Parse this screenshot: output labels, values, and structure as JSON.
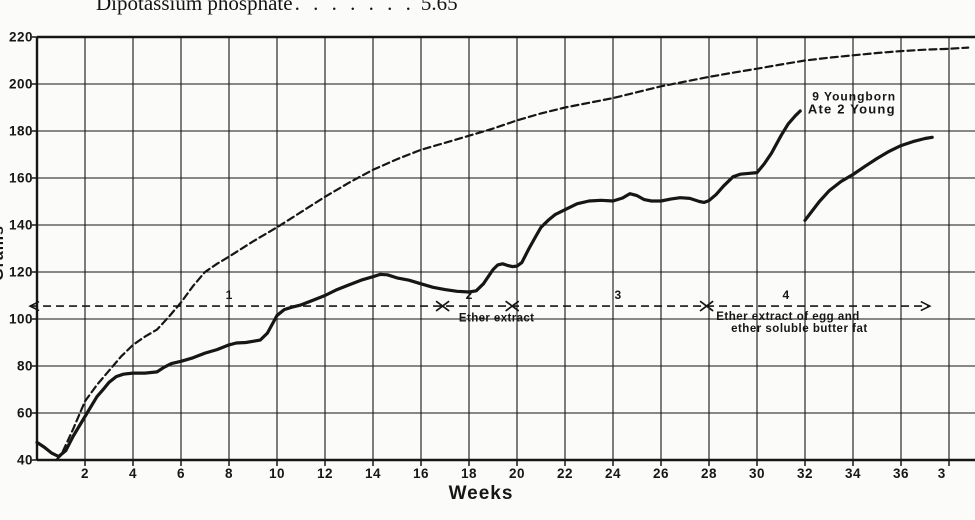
{
  "colors": {
    "ink": "#161616",
    "background": "#fbfbfa"
  },
  "caption": {
    "text": "Dipotassium phosphate",
    "leaders": ". . . . . . .",
    "value": "5.65"
  },
  "chart_data": {
    "type": "line",
    "title": "",
    "xlabel": "Weeks",
    "ylabel": "Grams",
    "xlim": [
      0,
      39
    ],
    "ylim": [
      40,
      220
    ],
    "grid": true,
    "x_ticks": [
      {
        "w": 2,
        "label": "2"
      },
      {
        "w": 4,
        "label": "4"
      },
      {
        "w": 6,
        "label": "6"
      },
      {
        "w": 8,
        "label": "8"
      },
      {
        "w": 10,
        "label": "10"
      },
      {
        "w": 12,
        "label": "12"
      },
      {
        "w": 14,
        "label": "14"
      },
      {
        "w": 16,
        "label": "16"
      },
      {
        "w": 18,
        "label": "18"
      },
      {
        "w": 20,
        "label": "20"
      },
      {
        "w": 22,
        "label": "22"
      },
      {
        "w": 24,
        "label": "24"
      },
      {
        "w": 26,
        "label": "26"
      },
      {
        "w": 28,
        "label": "28"
      },
      {
        "w": 30,
        "label": "30"
      },
      {
        "w": 32,
        "label": "32"
      },
      {
        "w": 34,
        "label": "34"
      },
      {
        "w": 36,
        "label": "36"
      },
      {
        "w": 37.7,
        "label": "3"
      }
    ],
    "y_ticks": [
      40,
      60,
      80,
      100,
      120,
      140,
      160,
      180,
      200,
      220
    ],
    "grid_weeks": [
      0,
      2,
      4,
      6,
      8,
      10,
      12,
      14,
      16,
      18,
      20,
      22,
      24,
      26,
      28,
      30,
      32,
      34,
      36,
      38
    ],
    "series": [
      {
        "name": "normal-growth-reference",
        "style": "dashed",
        "points": [
          [
            0.8,
            40
          ],
          [
            1,
            42
          ],
          [
            1.5,
            53
          ],
          [
            2,
            65
          ],
          [
            2.5,
            72
          ],
          [
            3,
            78
          ],
          [
            3.5,
            84
          ],
          [
            4,
            89
          ],
          [
            4.5,
            92.5
          ],
          [
            5,
            95.5
          ],
          [
            5.5,
            101
          ],
          [
            6,
            107
          ],
          [
            6.5,
            114
          ],
          [
            7,
            120
          ],
          [
            7.5,
            123.5
          ],
          [
            8,
            126.5
          ],
          [
            9,
            133
          ],
          [
            10,
            139
          ],
          [
            11,
            145.5
          ],
          [
            12,
            152
          ],
          [
            13,
            158
          ],
          [
            14,
            163.5
          ],
          [
            15,
            168
          ],
          [
            16,
            172
          ],
          [
            17,
            175
          ],
          [
            18,
            178
          ],
          [
            19,
            181
          ],
          [
            20,
            184.5
          ],
          [
            21,
            187.5
          ],
          [
            22,
            190
          ],
          [
            23,
            192
          ],
          [
            24,
            194
          ],
          [
            25,
            196.5
          ],
          [
            26,
            199
          ],
          [
            27,
            201
          ],
          [
            28,
            203
          ],
          [
            29,
            204.8
          ],
          [
            30,
            206.5
          ],
          [
            31,
            208.3
          ],
          [
            32,
            210
          ],
          [
            33,
            211.2
          ],
          [
            34,
            212.2
          ],
          [
            35,
            213.2
          ],
          [
            36,
            214
          ],
          [
            37,
            214.6
          ],
          [
            38,
            215
          ],
          [
            38.8,
            215.5
          ]
        ]
      },
      {
        "name": "experimental-animal",
        "style": "solid",
        "points": [
          [
            0,
            47.5
          ],
          [
            0.3,
            45.5
          ],
          [
            0.6,
            43
          ],
          [
            0.9,
            41.5
          ],
          [
            1.2,
            44
          ],
          [
            1.5,
            50
          ],
          [
            2,
            58.5
          ],
          [
            2.5,
            67
          ],
          [
            2.8,
            70.5
          ],
          [
            3,
            73
          ],
          [
            3.3,
            75.5
          ],
          [
            3.6,
            76.5
          ],
          [
            4,
            77
          ],
          [
            4.5,
            77
          ],
          [
            5,
            77.5
          ],
          [
            5.3,
            79.5
          ],
          [
            5.6,
            81
          ],
          [
            6,
            82
          ],
          [
            6.5,
            83.5
          ],
          [
            7,
            85.5
          ],
          [
            7.5,
            87
          ],
          [
            8,
            89
          ],
          [
            8.3,
            89.8
          ],
          [
            8.7,
            90
          ],
          [
            9,
            90.5
          ],
          [
            9.3,
            91
          ],
          [
            9.6,
            94
          ],
          [
            10,
            101.5
          ],
          [
            10.3,
            104
          ],
          [
            10.6,
            105
          ],
          [
            11,
            106
          ],
          [
            11.5,
            108
          ],
          [
            12,
            110
          ],
          [
            12.5,
            112.5
          ],
          [
            13,
            114.5
          ],
          [
            13.5,
            116.5
          ],
          [
            14,
            118
          ],
          [
            14.3,
            119
          ],
          [
            14.6,
            118.8
          ],
          [
            15,
            117.5
          ],
          [
            15.5,
            116.5
          ],
          [
            16,
            115
          ],
          [
            16.5,
            113.5
          ],
          [
            17,
            112.5
          ],
          [
            17.5,
            111.8
          ],
          [
            18,
            111.5
          ],
          [
            18.3,
            112
          ],
          [
            18.6,
            115
          ],
          [
            19,
            121
          ],
          [
            19.2,
            123
          ],
          [
            19.4,
            123.5
          ],
          [
            19.6,
            122.8
          ],
          [
            19.8,
            122.3
          ],
          [
            20,
            122.5
          ],
          [
            20.2,
            124
          ],
          [
            20.5,
            130
          ],
          [
            20.8,
            135.5
          ],
          [
            21,
            139
          ],
          [
            21.3,
            142
          ],
          [
            21.6,
            144.5
          ],
          [
            22,
            146.5
          ],
          [
            22.5,
            149
          ],
          [
            23,
            150.2
          ],
          [
            23.5,
            150.5
          ],
          [
            24,
            150.2
          ],
          [
            24.4,
            151.5
          ],
          [
            24.7,
            153.3
          ],
          [
            25,
            152.5
          ],
          [
            25.3,
            150.8
          ],
          [
            25.6,
            150.2
          ],
          [
            26,
            150.2
          ],
          [
            26.4,
            151
          ],
          [
            26.8,
            151.6
          ],
          [
            27.2,
            151.3
          ],
          [
            27.6,
            150
          ],
          [
            27.8,
            149.6
          ],
          [
            28,
            150.4
          ],
          [
            28.3,
            153
          ],
          [
            28.6,
            156.5
          ],
          [
            29,
            160.5
          ],
          [
            29.3,
            161.6
          ],
          [
            29.7,
            162
          ],
          [
            30,
            162.3
          ],
          [
            30.3,
            166
          ],
          [
            30.6,
            170.5
          ],
          [
            31,
            178
          ],
          [
            31.3,
            183
          ],
          [
            31.6,
            186.5
          ],
          [
            31.8,
            188.5
          ]
        ]
      },
      {
        "name": "experimental-animal-continued",
        "style": "solid",
        "points": [
          [
            32,
            142
          ],
          [
            32.3,
            146
          ],
          [
            32.6,
            150
          ],
          [
            33,
            154.5
          ],
          [
            33.5,
            158.5
          ],
          [
            34,
            161.5
          ],
          [
            34.5,
            165
          ],
          [
            35,
            168.3
          ],
          [
            35.5,
            171.3
          ],
          [
            36,
            173.8
          ],
          [
            36.5,
            175.5
          ],
          [
            37,
            176.8
          ],
          [
            37.3,
            177.3
          ]
        ]
      }
    ],
    "marker_line": {
      "grams": 105.5,
      "week_start": -0.29,
      "week_end": 37.2,
      "cross_marker_weeks": [
        16.9,
        19.8,
        27.9
      ],
      "section_labels": [
        {
          "label": "1",
          "week": 8.0
        },
        {
          "label": "2",
          "week": 18.0
        },
        {
          "label": "3",
          "week": 24.2
        },
        {
          "label": "4",
          "week": 31.2
        }
      ]
    },
    "annotations": [
      {
        "name": "young-born-note-line1",
        "text": "9 Youngborn",
        "week": 32.3,
        "grams": 193,
        "size": 12,
        "spacing": 1
      },
      {
        "name": "young-born-note-line2",
        "text": "Ate 2 Young",
        "week": 32.12,
        "grams": 187.5,
        "size": 13,
        "spacing": 1.2
      },
      {
        "name": "ether-extract-note",
        "text": "Ether extract",
        "week": 17.58,
        "grams": 99,
        "size": 11.5,
        "spacing": 0.4
      },
      {
        "name": "ether-egg-note-line1",
        "text": "Ether extract of egg and",
        "week": 28.3,
        "grams": 99.5,
        "size": 11.5,
        "spacing": 0.5
      },
      {
        "name": "ether-egg-note-line2",
        "text": "ether soluble butter fat",
        "week": 28.92,
        "grams": 94.5,
        "size": 11.5,
        "spacing": 0.5
      }
    ]
  }
}
